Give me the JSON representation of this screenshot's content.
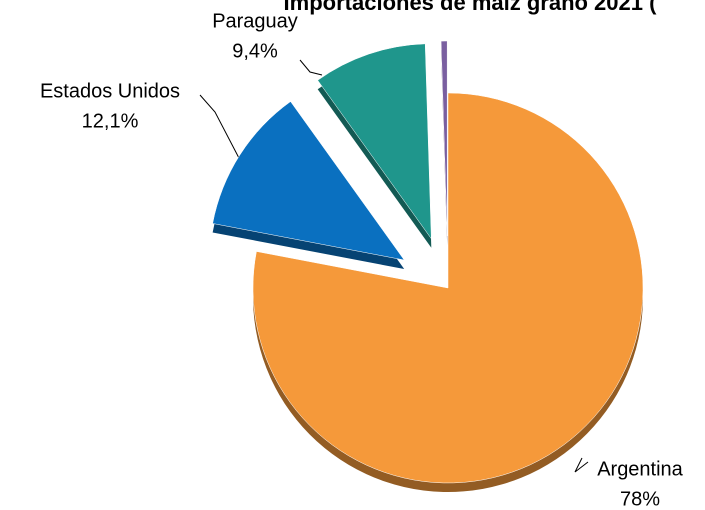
{
  "chart_data": {
    "type": "pie",
    "title": "Importaciones de maíz grano 2021   (",
    "categories": [
      "Argentina",
      "Estados Unidos",
      "Paraguay",
      null
    ],
    "values": [
      78,
      12.1,
      9.4,
      0.5
    ],
    "value_labels": [
      "78%",
      "12,1%",
      "9,4%",
      null
    ],
    "colors": [
      "#f5993a",
      "#0a70c0",
      "#1f968c",
      "#7a5fa0"
    ],
    "exploded": [
      false,
      true,
      true,
      true
    ]
  }
}
